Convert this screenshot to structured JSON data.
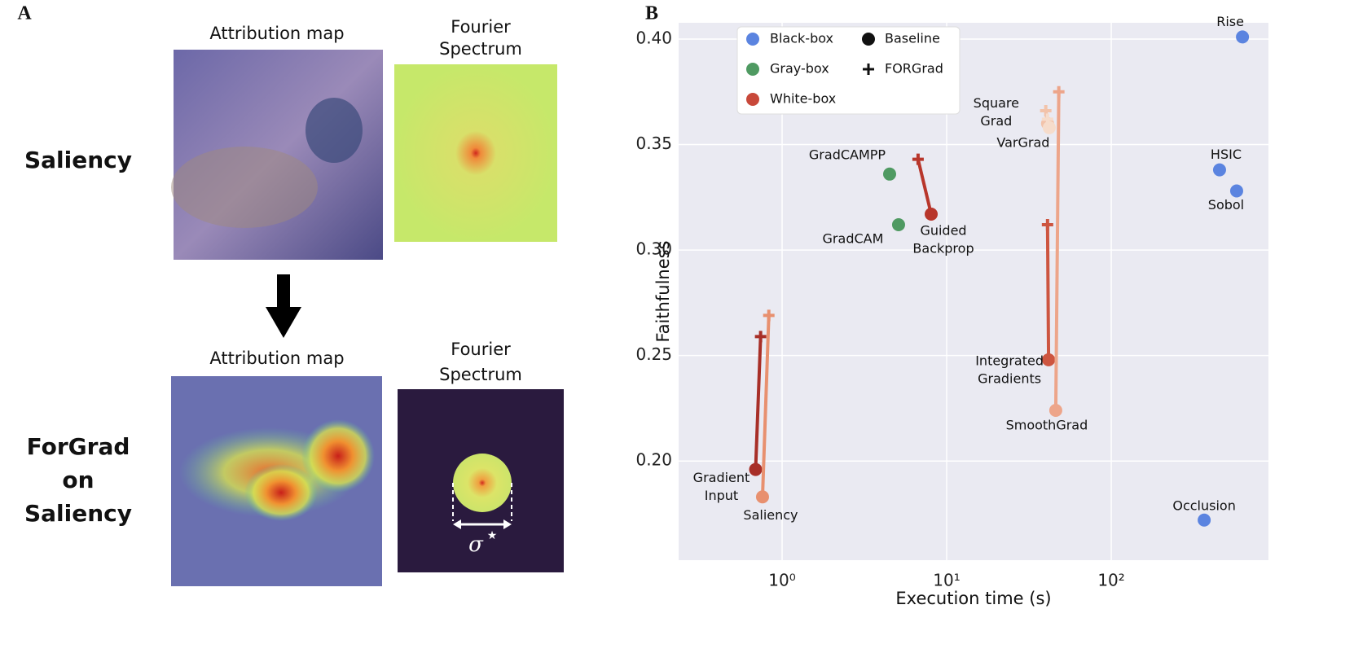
{
  "panel_a": {
    "label": "A",
    "rows": [
      {
        "title": [
          "Saliency"
        ],
        "map_title": "Attribution map",
        "spectrum_title": [
          "Fourier",
          "Spectrum"
        ]
      },
      {
        "title": [
          "ForGrad",
          "on",
          "Saliency"
        ],
        "map_title": "Attribution map",
        "spectrum_title": [
          "Fourier",
          "Spectrum"
        ]
      }
    ],
    "sigma": "σ",
    "sigma_sup": "★"
  },
  "chart_data": {
    "type": "scatter",
    "label": "B",
    "xlabel": "Execution time (s)",
    "ylabel": "Faithfulness",
    "xlog": true,
    "grid": true,
    "xlim": [
      0.235,
      902
    ],
    "ylim": [
      0.153,
      0.4077
    ],
    "xticks": [
      {
        "value": 1,
        "label": "10⁰"
      },
      {
        "value": 10,
        "label": "10¹"
      },
      {
        "value": 100,
        "label": "10²"
      }
    ],
    "yticks": [
      {
        "value": 0.2,
        "label": "0.20"
      },
      0.25,
      {
        "value": 0.3,
        "label": "0.30"
      },
      0.35,
      {
        "value": 0.4,
        "label": "0.40"
      }
    ],
    "groups": [
      {
        "name": "Black-box",
        "color": "#5b84e0"
      },
      {
        "name": "Gray-box",
        "color": "#4f9a62"
      },
      {
        "name": "White-box",
        "color": "#c8483a"
      }
    ],
    "markers": [
      "Baseline",
      "FORGrad"
    ],
    "legend": "upper left",
    "methods": [
      {
        "label": [
          "Rise"
        ],
        "group": "Black-box",
        "color": "#5b84e0",
        "x": [
          627
        ],
        "values": [
          0.401
        ]
      },
      {
        "label": [
          "HSIC"
        ],
        "group": "Black-box",
        "color": "#5b84e0",
        "x": [
          455
        ],
        "values": [
          0.338
        ]
      },
      {
        "label": [
          "Sobol"
        ],
        "group": "Black-box",
        "color": "#5b84e0",
        "x": [
          578
        ],
        "values": [
          0.328
        ]
      },
      {
        "label": [
          "Occlusion"
        ],
        "group": "Black-box",
        "color": "#5b84e0",
        "x": [
          367
        ],
        "values": [
          0.172
        ]
      },
      {
        "label": [
          "GradCAMPP"
        ],
        "group": "Gray-box",
        "color": "#4f9a62",
        "x": [
          4.5
        ],
        "values": [
          0.336
        ]
      },
      {
        "label": [
          "GradCAM"
        ],
        "group": "Gray-box",
        "color": "#4f9a62",
        "x": [
          5.1
        ],
        "values": [
          0.312
        ]
      },
      {
        "label": [
          "Guided",
          "Backprop"
        ],
        "group": "White-box",
        "color": "#b8362b",
        "x": [
          8.05,
          6.7
        ],
        "values": [
          0.317,
          0.343
        ]
      },
      {
        "label": [
          "Gradient",
          "Input"
        ],
        "group": "White-box",
        "color": "#a82f28",
        "x": [
          0.69,
          0.74
        ],
        "values": [
          0.196,
          0.259
        ]
      },
      {
        "label": [
          "Saliency"
        ],
        "group": "White-box",
        "color": "#e8906f",
        "x": [
          0.76,
          0.83
        ],
        "values": [
          0.183,
          0.269
        ]
      },
      {
        "label": [
          "Integrated",
          "Gradients"
        ],
        "group": "White-box",
        "color": "#cd5540",
        "x": [
          41.6,
          41
        ],
        "values": [
          0.248,
          0.312
        ]
      },
      {
        "label": [
          "SmoothGrad"
        ],
        "group": "White-box",
        "color": "#eda58a",
        "x": [
          46,
          48
        ],
        "values": [
          0.224,
          0.375
        ]
      },
      {
        "label": [
          "Square",
          "Grad"
        ],
        "group": "White-box",
        "color": "#f2c3aa",
        "x": [
          41,
          40
        ],
        "values": [
          0.36,
          0.366
        ]
      },
      {
        "label": [
          "VarGrad"
        ],
        "group": "White-box",
        "color": "#f6dccb",
        "x": [
          42,
          41
        ],
        "values": [
          0.358,
          0.362
        ]
      }
    ]
  }
}
